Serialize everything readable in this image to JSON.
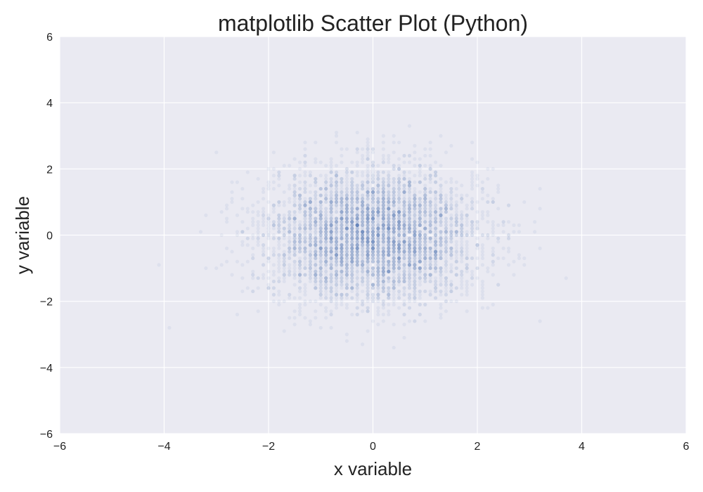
{
  "chart_data": {
    "type": "scatter",
    "title": "matplotlib Scatter Plot (Python)",
    "xlabel": "x variable",
    "ylabel": "y variable",
    "xlim": [
      -6,
      6
    ],
    "ylim": [
      -6,
      6
    ],
    "xticks": [
      -6,
      -4,
      -2,
      0,
      2,
      4,
      6
    ],
    "yticks": [
      -6,
      -4,
      -2,
      0,
      2,
      4,
      6
    ],
    "xtick_labels": [
      "−6",
      "−4",
      "−2",
      "0",
      "2",
      "4",
      "6"
    ],
    "ytick_labels": [
      "−6",
      "−4",
      "−2",
      "0",
      "2",
      "4",
      "6"
    ],
    "grid": true,
    "distribution": {
      "kind": "bivariate-normal",
      "x_mean": 0.0,
      "y_mean": 0.0,
      "x_std": 1.0,
      "y_std": 1.0,
      "n_points": 5000,
      "point_alpha": 0.08
    },
    "colors": {
      "background": "#EAEAF2",
      "marker": "#4C72B0",
      "grid": "#FFFFFF"
    }
  }
}
